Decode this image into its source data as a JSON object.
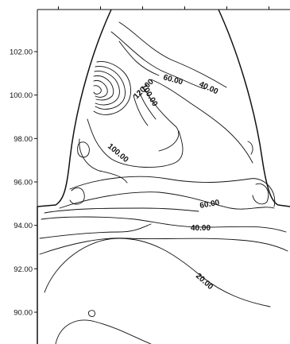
{
  "chart_data": {
    "type": "contour",
    "title": "",
    "xlabel": "",
    "ylabel": "",
    "y_ticks": [
      {
        "value": 102,
        "label": "102.00"
      },
      {
        "value": 100,
        "label": "100.00"
      },
      {
        "value": 98,
        "label": "98.00"
      },
      {
        "value": 96,
        "label": "96.00"
      },
      {
        "value": 94,
        "label": "94.00"
      },
      {
        "value": 92,
        "label": "92.00"
      },
      {
        "value": 90,
        "label": "90.00"
      }
    ],
    "x_tick_count": 6,
    "contour_labels": [
      {
        "value": 100,
        "label": "100.00"
      },
      {
        "value": 120,
        "label": "120.00"
      },
      {
        "value": 60,
        "label": "60.00"
      },
      {
        "value": 40,
        "label": "40.00"
      },
      {
        "value": 100,
        "label": "100.00"
      },
      {
        "value": 60,
        "label": "60.00"
      },
      {
        "value": 40,
        "label": "40.00"
      },
      {
        "value": 20,
        "label": "20.00"
      }
    ],
    "grid": false
  }
}
